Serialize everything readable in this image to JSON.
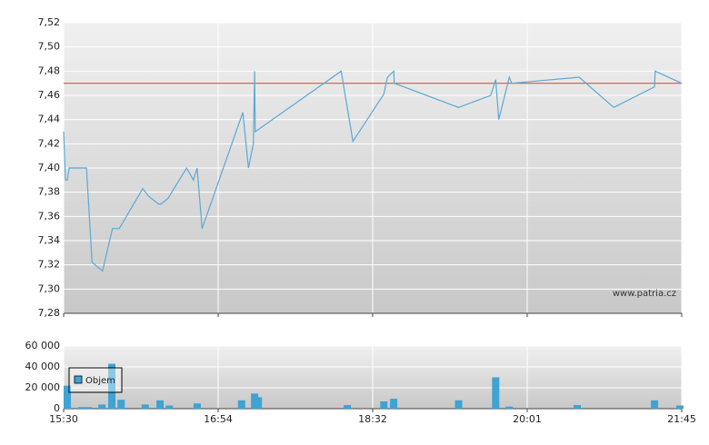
{
  "chart_data": [
    {
      "type": "line",
      "watermark": "www.patria.cz",
      "color": "#5aa9d6",
      "reference_line": {
        "value": 7.47,
        "color": "#d9534f"
      },
      "x": [
        0,
        0.3,
        0.6,
        0.9,
        3.7,
        4.6,
        6.3,
        7.9,
        9.0,
        12.8,
        13.7,
        15.4,
        15.7,
        16.9,
        19.9,
        21.0,
        21.6,
        22.4,
        29.0,
        29.9,
        30.7,
        30.9,
        31.0,
        44.9,
        46.8,
        51.8,
        52.4,
        53.4,
        53.5,
        63.9,
        69.1,
        69.9,
        70.4,
        72.1,
        72.5,
        83.4,
        89.0,
        95.6,
        95.7,
        100
      ],
      "values": [
        7.43,
        7.39,
        7.39,
        7.4,
        7.4,
        7.322,
        7.315,
        7.35,
        7.35,
        7.383,
        7.377,
        7.37,
        7.37,
        7.375,
        7.4,
        7.39,
        7.4,
        7.35,
        7.446,
        7.4,
        7.42,
        7.48,
        7.43,
        7.48,
        7.422,
        7.461,
        7.475,
        7.48,
        7.47,
        7.45,
        7.46,
        7.473,
        7.44,
        7.475,
        7.47,
        7.475,
        7.45,
        7.467,
        7.48,
        7.47
      ],
      "xlim": [
        0,
        100
      ],
      "ylim": [
        7.28,
        7.52
      ],
      "yticks": [
        {
          "value": 7.28,
          "label": "7,28"
        },
        {
          "value": 7.3,
          "label": "7,30"
        },
        {
          "value": 7.32,
          "label": "7,32"
        },
        {
          "value": 7.34,
          "label": "7,34"
        },
        {
          "value": 7.36,
          "label": "7,36"
        },
        {
          "value": 7.38,
          "label": "7,38"
        },
        {
          "value": 7.4,
          "label": "7,40"
        },
        {
          "value": 7.42,
          "label": "7,42"
        },
        {
          "value": 7.44,
          "label": "7,44"
        },
        {
          "value": 7.46,
          "label": "7,46"
        },
        {
          "value": 7.48,
          "label": "7,48"
        },
        {
          "value": 7.5,
          "label": "7,50"
        },
        {
          "value": 7.52,
          "label": "7,52"
        }
      ],
      "xticks": [
        0,
        25,
        50,
        75,
        100
      ],
      "grid": true
    },
    {
      "type": "bar",
      "legend": "Objem",
      "color": "#3fa3d3",
      "x": [
        0.1,
        2.9,
        4.0,
        6.2,
        7.8,
        9.3,
        13.2,
        15.6,
        17.1,
        21.6,
        28.8,
        30.9,
        31.5,
        45.9,
        51.8,
        53.4,
        63.9,
        69.9,
        72.1,
        83.1,
        95.6,
        99.7
      ],
      "values": [
        22000,
        1500,
        1500,
        4000,
        43000,
        8500,
        4000,
        8000,
        3000,
        5000,
        8000,
        14500,
        11000,
        3500,
        7000,
        9500,
        8000,
        30000,
        2000,
        3500,
        8000,
        3000
      ],
      "xlim": [
        0,
        100
      ],
      "ylim": [
        0,
        60000
      ],
      "yticks": [
        {
          "value": 0,
          "label": "0"
        },
        {
          "value": 20000,
          "label": "20 000"
        },
        {
          "value": 40000,
          "label": "40 000"
        },
        {
          "value": 60000,
          "label": "60 000"
        }
      ],
      "xticks": [
        {
          "value": 0,
          "label": "15:30"
        },
        {
          "value": 25,
          "label": "16:54"
        },
        {
          "value": 50,
          "label": "18:32"
        },
        {
          "value": 75,
          "label": "20:01"
        },
        {
          "value": 100,
          "label": "21:45"
        }
      ],
      "grid": true
    }
  ]
}
